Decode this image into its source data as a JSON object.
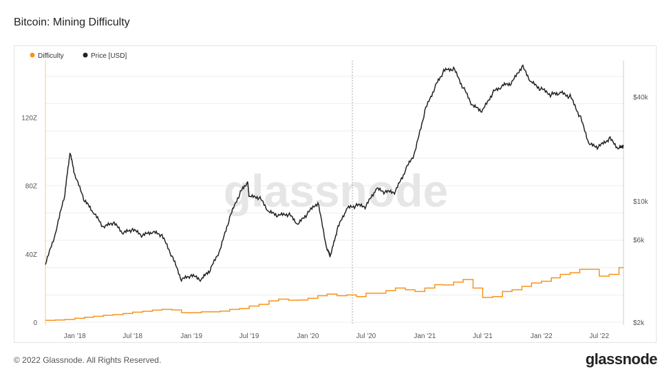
{
  "title": "Bitcoin: Mining Difficulty",
  "footer": "© 2022 Glassnode. All Rights Reserved.",
  "brand": "glassnode",
  "watermark": "glassnode",
  "chart_data": {
    "type": "line",
    "title": "Bitcoin: Mining Difficulty",
    "x_range": [
      "2017-10-01",
      "2022-09-15"
    ],
    "x_ticks": [
      "Jan '18",
      "Jul '18",
      "Jan '19",
      "Jul '19",
      "Jan '20",
      "Jul '20",
      "Jan '21",
      "Jul '21",
      "Jan '22",
      "Jul '22"
    ],
    "left_axis": {
      "ticks": [
        "0",
        "40Z",
        "80Z",
        "120Z"
      ],
      "range": [
        0,
        150
      ]
    },
    "right_axis": {
      "scale": "log",
      "ticks": [
        "$2k",
        "$6k",
        "$10k",
        "$40k"
      ],
      "range": [
        2000,
        60000
      ]
    },
    "legend": {
      "placement": "top-left"
    },
    "colors": {
      "difficulty": "#f7931a",
      "price": "#222222",
      "grid": "#eeeeee"
    },
    "series": [
      {
        "name": "Difficulty",
        "axis": "left",
        "x": [
          "2017-10-01",
          "2017-11-01",
          "2017-12-01",
          "2018-01-01",
          "2018-02-01",
          "2018-03-01",
          "2018-04-01",
          "2018-05-01",
          "2018-06-01",
          "2018-07-01",
          "2018-08-01",
          "2018-09-01",
          "2018-10-01",
          "2018-11-01",
          "2018-12-01",
          "2019-01-01",
          "2019-02-01",
          "2019-03-01",
          "2019-04-01",
          "2019-05-01",
          "2019-06-01",
          "2019-07-01",
          "2019-08-01",
          "2019-09-01",
          "2019-10-01",
          "2019-11-01",
          "2019-12-01",
          "2020-01-01",
          "2020-02-01",
          "2020-03-01",
          "2020-04-01",
          "2020-05-01",
          "2020-06-01",
          "2020-07-01",
          "2020-08-01",
          "2020-09-01",
          "2020-10-01",
          "2020-11-01",
          "2020-12-01",
          "2021-01-01",
          "2021-02-01",
          "2021-03-01",
          "2021-04-01",
          "2021-05-01",
          "2021-06-01",
          "2021-07-01",
          "2021-08-01",
          "2021-09-01",
          "2021-10-01",
          "2021-11-01",
          "2021-12-01",
          "2022-01-01",
          "2022-02-01",
          "2022-03-01",
          "2022-04-01",
          "2022-05-01",
          "2022-06-01",
          "2022-07-01",
          "2022-08-01",
          "2022-09-01"
        ],
        "values": [
          1.1,
          1.3,
          1.6,
          2.3,
          2.9,
          3.5,
          4.1,
          4.5,
          5.1,
          5.9,
          6.4,
          7.1,
          7.5,
          7.2,
          5.6,
          5.6,
          6.1,
          6.1,
          6.5,
          7.5,
          8.0,
          9.5,
          10.5,
          12.5,
          13.5,
          12.9,
          13.0,
          14.0,
          15.5,
          16.5,
          15.5,
          16.0,
          15.0,
          17.0,
          17.0,
          18.5,
          20.0,
          19.0,
          18.0,
          20.0,
          22.0,
          21.8,
          23.5,
          25.0,
          20.0,
          14.5,
          15.0,
          18.0,
          19.0,
          21.0,
          23.0,
          24.0,
          26.0,
          28.0,
          29.0,
          31.0,
          31.0,
          27.0,
          28.0,
          32.0
        ]
      },
      {
        "name": "Price [USD]",
        "axis": "right",
        "x": [
          "2017-10-01",
          "2017-11-01",
          "2017-12-01",
          "2017-12-17",
          "2018-01-01",
          "2018-02-01",
          "2018-03-01",
          "2018-04-01",
          "2018-05-01",
          "2018-06-01",
          "2018-07-01",
          "2018-08-01",
          "2018-09-01",
          "2018-10-01",
          "2018-11-01",
          "2018-12-01",
          "2019-01-01",
          "2019-02-01",
          "2019-03-01",
          "2019-04-01",
          "2019-05-01",
          "2019-06-01",
          "2019-06-26",
          "2019-07-01",
          "2019-08-01",
          "2019-09-01",
          "2019-10-01",
          "2019-11-01",
          "2019-12-01",
          "2020-01-01",
          "2020-02-01",
          "2020-03-01",
          "2020-03-12",
          "2020-04-01",
          "2020-05-01",
          "2020-06-01",
          "2020-07-01",
          "2020-08-01",
          "2020-09-01",
          "2020-10-01",
          "2020-11-01",
          "2020-12-01",
          "2021-01-01",
          "2021-02-01",
          "2021-03-01",
          "2021-04-01",
          "2021-05-01",
          "2021-06-01",
          "2021-07-01",
          "2021-08-01",
          "2021-09-01",
          "2021-10-01",
          "2021-11-01",
          "2021-12-01",
          "2022-01-01",
          "2022-02-01",
          "2022-03-01",
          "2022-04-01",
          "2022-05-01",
          "2022-06-01",
          "2022-07-01",
          "2022-08-01",
          "2022-09-01",
          "2022-09-15"
        ],
        "values": [
          4300,
          6400,
          11000,
          19000,
          14000,
          10000,
          8500,
          7000,
          7500,
          6500,
          6800,
          6300,
          6600,
          6300,
          4800,
          3500,
          3700,
          3500,
          4000,
          5200,
          8000,
          11000,
          12800,
          10500,
          10500,
          8600,
          8200,
          8400,
          7300,
          8500,
          9800,
          5200,
          4800,
          6800,
          9000,
          9400,
          9300,
          11700,
          11200,
          11300,
          15000,
          19000,
          33000,
          45000,
          56000,
          58000,
          45000,
          35000,
          33000,
          42000,
          46000,
          48000,
          60000,
          48000,
          44000,
          41000,
          42000,
          40000,
          31000,
          21000,
          20500,
          23000,
          20000,
          21000
        ],
        "peak_annotations": []
      }
    ]
  }
}
